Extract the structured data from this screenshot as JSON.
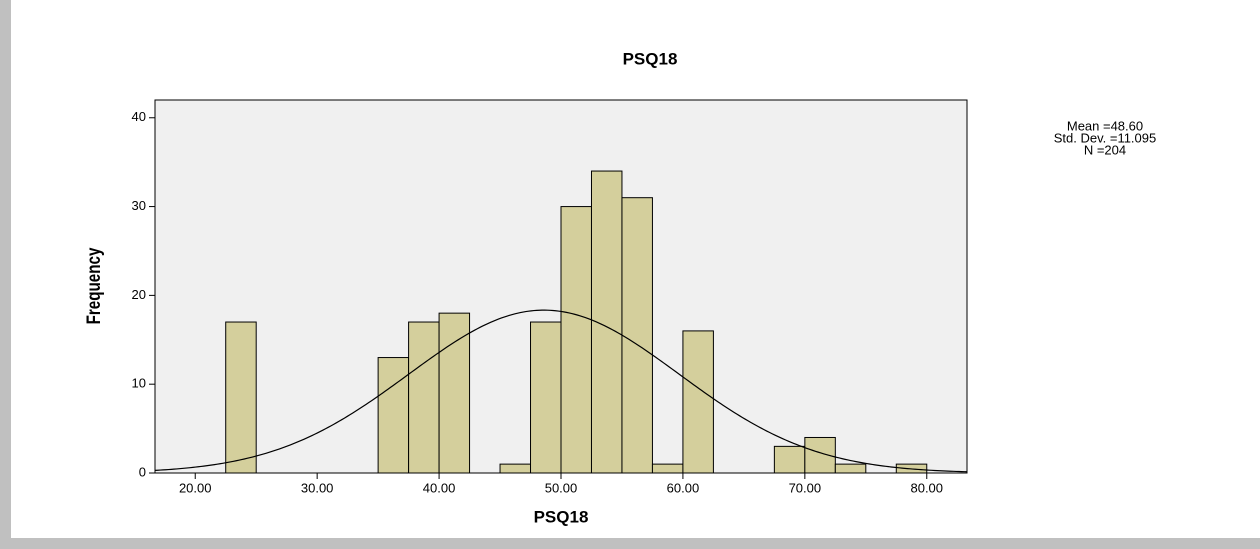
{
  "chart_data": {
    "type": "histogram",
    "title": "PSQ18",
    "x_label": "PSQ18",
    "y_label": "Frequency",
    "bins": [
      22.5,
      25,
      27.5,
      30,
      32.5,
      35,
      37.5,
      40,
      42.5,
      45,
      47.5,
      50,
      52.5,
      55,
      57.5,
      60,
      62.5,
      65,
      67.5,
      70,
      72.5,
      75,
      77.5,
      80
    ],
    "values": [
      17,
      0,
      0,
      0,
      0,
      13,
      17,
      18,
      0,
      1,
      17,
      30,
      34,
      31,
      1,
      16,
      0,
      0,
      3,
      4,
      1,
      0,
      1
    ],
    "color": "#d4cf9c",
    "xlim": [
      16.7,
      83.3
    ],
    "ylim": [
      0,
      42
    ],
    "xticks": [
      {
        "value": 20,
        "label": "20.00"
      },
      {
        "value": 30,
        "label": "30.00"
      },
      {
        "value": 40,
        "label": "40.00"
      },
      {
        "value": 50,
        "label": "50.00"
      },
      {
        "value": 60,
        "label": "60.00"
      },
      {
        "value": 70,
        "label": "70.00"
      },
      {
        "value": 80,
        "label": "80.00"
      }
    ],
    "yticks": [
      0,
      10,
      20,
      30,
      40
    ],
    "stats": {
      "mean": {
        "value": 48.6,
        "label": "Mean =48.60"
      },
      "sd": {
        "value": 11.095,
        "label": "Std. Dev. =11.095"
      },
      "n": {
        "value": 204,
        "label": "N =204"
      }
    }
  }
}
